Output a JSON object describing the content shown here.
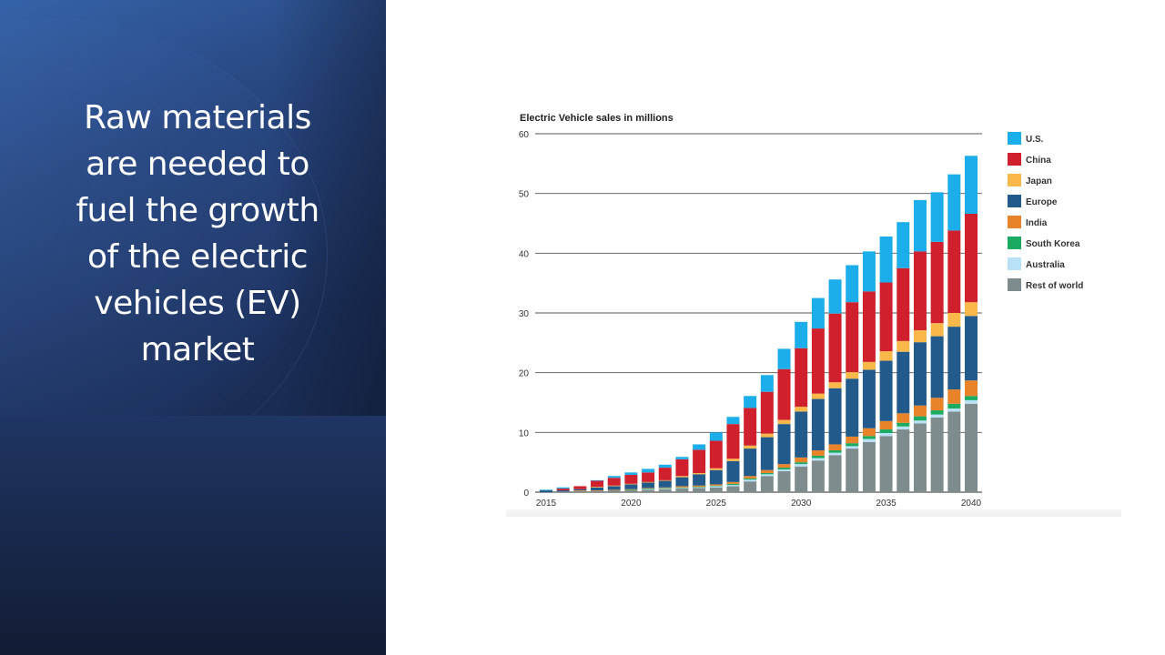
{
  "slide": {
    "title": "Raw materials are needed to fuel the growth of the electric vehicles (EV) market",
    "title_lines": [
      "Raw materials",
      "are needed to",
      "fuel the growth",
      "of the electric",
      "vehicles (EV)",
      "market"
    ]
  },
  "chart_data": {
    "type": "bar",
    "stacked": true,
    "title": "Electric Vehicle sales in millions",
    "xlabel": "",
    "ylabel": "",
    "ylim": [
      0,
      60
    ],
    "yticks": [
      0,
      10,
      20,
      30,
      40,
      50,
      60
    ],
    "xtick_labels": [
      "2015",
      "2020",
      "2025",
      "2030",
      "2035",
      "2040"
    ],
    "grid": true,
    "legend_position": "right",
    "categories": [
      "2015",
      "2016",
      "2017",
      "2018",
      "2019",
      "2020",
      "2021",
      "2022",
      "2023",
      "2024",
      "2025",
      "2026",
      "2027",
      "2028",
      "2029",
      "2030",
      "2031",
      "2032",
      "2033",
      "2034",
      "2035",
      "2036",
      "2037",
      "2038",
      "2039",
      "2040"
    ],
    "series": [
      {
        "name": "Rest of world",
        "color": "#7f8c8d",
        "values": [
          0.0,
          0.1,
          0.2,
          0.2,
          0.3,
          0.3,
          0.4,
          0.5,
          0.6,
          0.7,
          0.8,
          1.0,
          1.8,
          2.7,
          3.5,
          4.3,
          5.3,
          6.2,
          7.3,
          8.4,
          9.4,
          10.5,
          11.5,
          12.5,
          13.5,
          14.8
        ]
      },
      {
        "name": "Australia",
        "color": "#b8e0f7",
        "values": [
          0.0,
          0.0,
          0.0,
          0.0,
          0.0,
          0.0,
          0.1,
          0.1,
          0.1,
          0.1,
          0.2,
          0.2,
          0.3,
          0.3,
          0.3,
          0.4,
          0.4,
          0.4,
          0.4,
          0.5,
          0.5,
          0.5,
          0.5,
          0.5,
          0.5,
          0.6
        ]
      },
      {
        "name": "South Korea",
        "color": "#1aaa60",
        "values": [
          0.0,
          0.0,
          0.0,
          0.0,
          0.0,
          0.1,
          0.1,
          0.1,
          0.1,
          0.1,
          0.1,
          0.2,
          0.2,
          0.2,
          0.3,
          0.3,
          0.4,
          0.4,
          0.5,
          0.5,
          0.6,
          0.6,
          0.7,
          0.7,
          0.8,
          0.7
        ]
      },
      {
        "name": "India",
        "color": "#e8832a",
        "values": [
          0.0,
          0.0,
          0.1,
          0.1,
          0.1,
          0.1,
          0.1,
          0.1,
          0.2,
          0.2,
          0.2,
          0.3,
          0.4,
          0.5,
          0.6,
          0.8,
          0.9,
          1.0,
          1.1,
          1.3,
          1.4,
          1.6,
          1.8,
          2.1,
          2.4,
          2.6
        ]
      },
      {
        "name": "Europe",
        "color": "#235a8c",
        "values": [
          0.3,
          0.2,
          0.2,
          0.5,
          0.6,
          0.8,
          0.9,
          1.1,
          1.5,
          1.9,
          2.4,
          3.5,
          4.6,
          5.5,
          6.7,
          7.7,
          8.6,
          9.4,
          9.7,
          9.8,
          10.1,
          10.3,
          10.6,
          10.3,
          10.5,
          10.8
        ]
      },
      {
        "name": "Japan",
        "color": "#fbb84a",
        "values": [
          0.0,
          0.0,
          0.0,
          0.1,
          0.1,
          0.1,
          0.1,
          0.1,
          0.2,
          0.2,
          0.3,
          0.4,
          0.5,
          0.6,
          0.7,
          0.8,
          0.9,
          1.0,
          1.1,
          1.3,
          1.6,
          1.8,
          2.0,
          2.2,
          2.3,
          2.3
        ]
      },
      {
        "name": "China",
        "color": "#d0202e",
        "values": [
          0.0,
          0.3,
          0.5,
          1.0,
          1.3,
          1.5,
          1.6,
          2.1,
          2.8,
          3.9,
          4.6,
          5.8,
          6.3,
          7.0,
          8.5,
          9.8,
          10.9,
          11.5,
          11.7,
          11.8,
          11.5,
          12.2,
          13.2,
          13.6,
          13.8,
          14.8
        ]
      },
      {
        "name": "U.S.",
        "color": "#1cadeb",
        "values": [
          0.1,
          0.2,
          0.0,
          0.1,
          0.3,
          0.4,
          0.6,
          0.5,
          0.4,
          0.9,
          1.4,
          1.2,
          2.0,
          2.8,
          3.4,
          4.4,
          5.1,
          5.7,
          6.2,
          6.7,
          7.7,
          7.7,
          8.6,
          8.3,
          9.4,
          9.7
        ]
      }
    ]
  }
}
